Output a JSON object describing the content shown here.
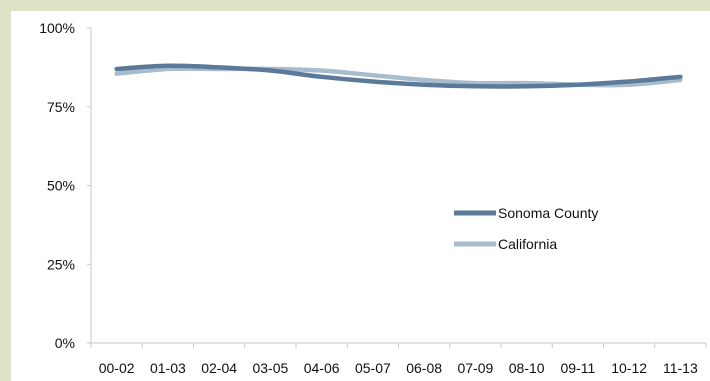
{
  "chart_data": {
    "type": "line",
    "title": "",
    "xlabel": "",
    "ylabel": "",
    "categories": [
      "00-02",
      "01-03",
      "02-04",
      "03-05",
      "04-06",
      "05-07",
      "06-08",
      "07-09",
      "08-10",
      "09-11",
      "10-12",
      "11-13"
    ],
    "ylim": [
      0,
      100
    ],
    "y_ticks": [
      "0%",
      "25%",
      "50%",
      "75%",
      "100%"
    ],
    "y_tick_values": [
      0,
      25,
      50,
      75,
      100
    ],
    "grid": false,
    "legend_position": "center-right",
    "series": [
      {
        "name": "Sonoma County",
        "color": "#5b7a99",
        "values": [
          87,
          88,
          87.5,
          86.5,
          84.5,
          83,
          82,
          81.5,
          81.5,
          82,
          83,
          84.5
        ]
      },
      {
        "name": "California",
        "color": "#a7bccc",
        "values": [
          85.5,
          87,
          87,
          87,
          86.5,
          85,
          83.5,
          82.5,
          82.5,
          82,
          82,
          83.5
        ]
      }
    ]
  }
}
